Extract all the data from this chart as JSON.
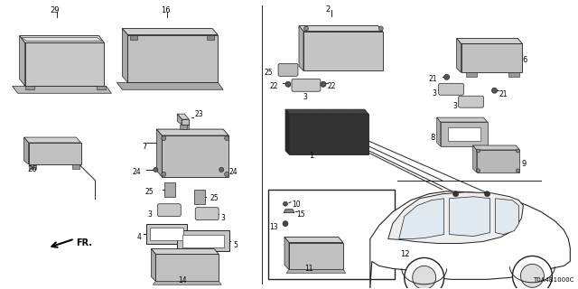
{
  "bg_color": "#ffffff",
  "diagram_code": "T0A4B1000C",
  "line_color": "#222222",
  "part_color_light": "#e8e8e8",
  "part_color_mid": "#cccccc",
  "part_color_dark": "#aaaaaa",
  "part_color_darkest": "#555555"
}
